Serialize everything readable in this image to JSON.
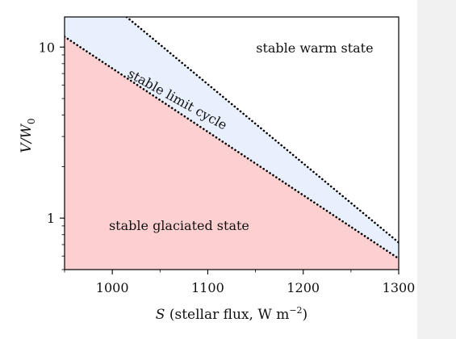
{
  "chart_data": {
    "type": "area",
    "xlabel": {
      "symbol": "S",
      "text": " (stellar flux, W m",
      "exponent": "−2",
      "close": ")"
    },
    "ylabel": {
      "symbol": "V/W",
      "subscript": "0"
    },
    "xlim": [
      950,
      1300
    ],
    "ylim": [
      0.5,
      15
    ],
    "yscale": "log",
    "x_ticks": [
      1000,
      1100,
      1200,
      1300
    ],
    "x_tick_labels": [
      "1000",
      "1100",
      "1200",
      "1300"
    ],
    "y_ticks": [
      1,
      10
    ],
    "y_tick_labels": [
      "1",
      "10"
    ],
    "grid": false,
    "boundaries": [
      {
        "name": "lower",
        "style": "dotted",
        "color": "#000000",
        "points": [
          [
            950,
            11.5
          ],
          [
            1300,
            0.58
          ]
        ]
      },
      {
        "name": "upper",
        "style": "dotted",
        "color": "#000000",
        "points": [
          [
            1015,
            15
          ],
          [
            1300,
            0.72
          ]
        ]
      }
    ],
    "regions": [
      {
        "label": "stable glaciated state",
        "color": "#fcd0d0",
        "anchor": [
          1070,
          0.85
        ]
      },
      {
        "label": "stable limit cycle",
        "color": "#e9f0fd",
        "anchor": [
          1066,
          4.7
        ],
        "rotation": 29
      },
      {
        "label": "stable warm state",
        "color": "#ffffff",
        "anchor": [
          1212,
          9.3
        ]
      }
    ]
  }
}
